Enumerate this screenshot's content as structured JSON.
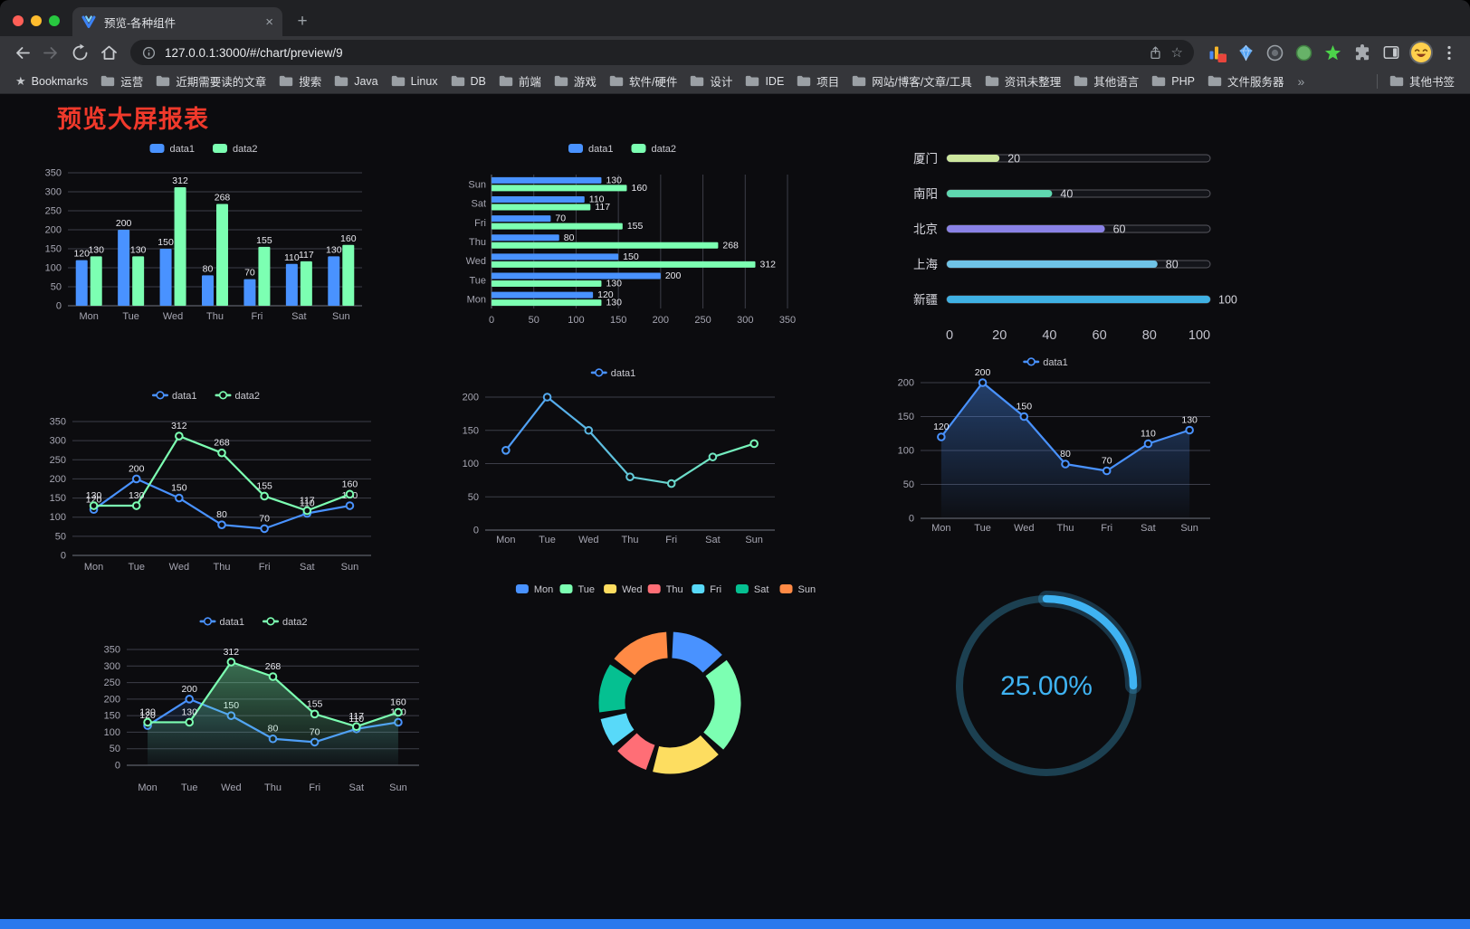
{
  "browser": {
    "tab": {
      "title": "预览-各种组件",
      "close_glyph": "×",
      "new_tab_glyph": "+"
    },
    "nav": {
      "url": "127.0.0.1:3000/#/chart/preview/9"
    },
    "bookmarks": {
      "label": "Bookmarks",
      "folders": [
        "运营",
        "近期需要读的文章",
        "搜索",
        "Java",
        "Linux",
        "DB",
        "前端",
        "游戏",
        "软件/硬件",
        "设计",
        "IDE",
        "项目",
        "网站/博客/文章/工具",
        "资讯未整理",
        "其他语言",
        "PHP",
        "文件服务器"
      ],
      "overflow_glyph": "»",
      "other_label": "其他书签"
    }
  },
  "page": {
    "title": "预览大屏报表",
    "title_color": "#f0392b",
    "background": "#0c0c0f",
    "bottom_bar_color": "#2979ed"
  },
  "palette": {
    "data1": "#4992ff",
    "data2": "#7cffb2"
  },
  "chart_data": [
    {
      "id": "bar-vertical",
      "type": "bar",
      "categories": [
        "Mon",
        "Tue",
        "Wed",
        "Thu",
        "Fri",
        "Sat",
        "Sun"
      ],
      "series": [
        {
          "name": "data1",
          "color": "#4992ff",
          "values": [
            120,
            200,
            150,
            80,
            70,
            110,
            130
          ]
        },
        {
          "name": "data2",
          "color": "#7cffb2",
          "values": [
            130,
            130,
            312,
            268,
            155,
            117,
            160
          ]
        }
      ],
      "ylim": [
        0,
        350
      ],
      "yticks": [
        0,
        50,
        100,
        150,
        200,
        250,
        300,
        350
      ],
      "show_labels": true,
      "legend_position": "top",
      "grid": true
    },
    {
      "id": "bar-horizontal",
      "type": "bar-horizontal",
      "categories": [
        "Sun",
        "Sat",
        "Fri",
        "Thu",
        "Wed",
        "Tue",
        "Mon"
      ],
      "series": [
        {
          "name": "data1",
          "color": "#4992ff",
          "values": [
            130,
            110,
            70,
            80,
            150,
            200,
            120
          ]
        },
        {
          "name": "data2",
          "color": "#7cffb2",
          "values": [
            160,
            117,
            155,
            268,
            312,
            130,
            130
          ]
        }
      ],
      "xlim": [
        0,
        350
      ],
      "xticks": [
        0,
        50,
        100,
        150,
        200,
        250,
        300,
        350
      ],
      "show_labels": true,
      "legend_position": "top",
      "grid": true
    },
    {
      "id": "progress-bars",
      "type": "progress",
      "items": [
        {
          "label": "厦门",
          "value": 20,
          "color": "#cde79e"
        },
        {
          "label": "南阳",
          "value": 40,
          "color": "#5fd8b0"
        },
        {
          "label": "北京",
          "value": 60,
          "color": "#8a82e6"
        },
        {
          "label": "上海",
          "value": 80,
          "color": "#6fc3e6"
        },
        {
          "label": "新疆",
          "value": 100,
          "color": "#3fb1e3"
        }
      ],
      "xlim": [
        0,
        100
      ],
      "xticks": [
        0,
        20,
        40,
        60,
        80,
        100
      ]
    },
    {
      "id": "line-two-series",
      "type": "line",
      "categories": [
        "Mon",
        "Tue",
        "Wed",
        "Thu",
        "Fri",
        "Sat",
        "Sun"
      ],
      "series": [
        {
          "name": "data1",
          "color": "#4992ff",
          "values": [
            120,
            200,
            150,
            80,
            70,
            110,
            130
          ]
        },
        {
          "name": "data2",
          "color": "#7cffb2",
          "values": [
            130,
            130,
            312,
            268,
            155,
            117,
            160
          ]
        }
      ],
      "ylim": [
        0,
        350
      ],
      "yticks": [
        0,
        50,
        100,
        150,
        200,
        250,
        300,
        350
      ],
      "show_labels": true,
      "legend_position": "top",
      "grid": true
    },
    {
      "id": "line-gradient",
      "type": "line",
      "categories": [
        "Mon",
        "Tue",
        "Wed",
        "Thu",
        "Fri",
        "Sat",
        "Sun"
      ],
      "series": [
        {
          "name": "data1",
          "gradient": [
            "#4992ff",
            "#7cffb2"
          ],
          "values": [
            120,
            200,
            150,
            80,
            70,
            110,
            130
          ]
        }
      ],
      "ylim": [
        0,
        200
      ],
      "yticks": [
        0,
        50,
        100,
        150,
        200
      ],
      "show_labels": false,
      "legend_position": "top",
      "grid": true
    },
    {
      "id": "area-single",
      "type": "line",
      "categories": [
        "Mon",
        "Tue",
        "Wed",
        "Thu",
        "Fri",
        "Sat",
        "Sun"
      ],
      "series": [
        {
          "name": "data1",
          "color": "#4992ff",
          "values": [
            120,
            200,
            150,
            80,
            70,
            110,
            130
          ],
          "area": true,
          "area_opacity": 0.38
        }
      ],
      "ylim": [
        0,
        200
      ],
      "yticks": [
        0,
        50,
        100,
        150,
        200
      ],
      "show_labels": true,
      "legend_position": "top",
      "grid": true
    },
    {
      "id": "line-area-two",
      "type": "line",
      "categories": [
        "Mon",
        "Tue",
        "Wed",
        "Thu",
        "Fri",
        "Sat",
        "Sun"
      ],
      "series": [
        {
          "name": "data1",
          "color": "#4992ff",
          "values": [
            120,
            200,
            150,
            80,
            70,
            110,
            130
          ],
          "area": true,
          "area_opacity": 0.22
        },
        {
          "name": "data2",
          "color": "#7cffb2",
          "values": [
            130,
            130,
            312,
            268,
            155,
            117,
            160
          ],
          "area": true,
          "area_opacity": 0.45
        }
      ],
      "ylim": [
        0,
        350
      ],
      "yticks": [
        0,
        50,
        100,
        150,
        200,
        250,
        300,
        350
      ],
      "show_labels": true,
      "legend_position": "top",
      "grid": true
    },
    {
      "id": "donut",
      "type": "pie",
      "labels": [
        "Mon",
        "Tue",
        "Wed",
        "Thu",
        "Fri",
        "Sat",
        "Sun"
      ],
      "values": [
        120,
        200,
        150,
        80,
        70,
        110,
        130
      ],
      "colors": [
        "#4992ff",
        "#7cffb2",
        "#fddd60",
        "#ff6e76",
        "#58d9f9",
        "#05c091",
        "#ff8a45"
      ],
      "legend_position": "top"
    },
    {
      "id": "gauge",
      "type": "gauge",
      "value": 25,
      "display": "25.00%",
      "color": "#3fb3f2",
      "track_color": "#1c4051"
    }
  ]
}
